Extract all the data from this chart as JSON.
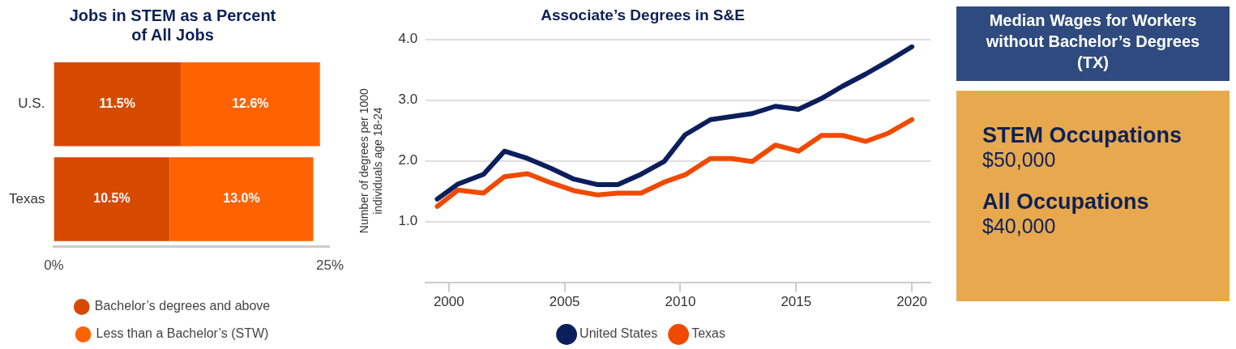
{
  "chart_data": [
    {
      "type": "bar",
      "orientation": "horizontal",
      "stacked": true,
      "title": "Jobs in STEM as a Percent of All Jobs",
      "categories": [
        "U.S.",
        "Texas"
      ],
      "series": [
        {
          "name": "Bachelor’s degrees and above",
          "color": "#d64a00",
          "values": [
            11.5,
            10.5
          ],
          "value_labels": [
            "11.5%",
            "10.5%"
          ]
        },
        {
          "name": "Less than a Bachelor’s (STW)",
          "color": "#ff6200",
          "values": [
            12.6,
            13.0
          ],
          "value_labels": [
            "12.6%",
            "13.0%"
          ]
        }
      ],
      "xlim": [
        0,
        25
      ],
      "xticks": [
        {
          "value": 0,
          "label": "0%"
        },
        {
          "value": 25,
          "label": "25%"
        }
      ],
      "grid": false,
      "legend": "bottom"
    },
    {
      "type": "line",
      "title": "Associate’s Degrees in S&E",
      "ylabel": "Number of degrees per 1000 individuals age 18-24",
      "x": [
        1999.5,
        2000.4,
        2001.5,
        2002.4,
        2003.4,
        2004.4,
        2005.4,
        2006.4,
        2007.3,
        2008.3,
        2009.3,
        2010.2,
        2011.3,
        2012.2,
        2013.1,
        2014.1,
        2015.1,
        2016.1,
        2017.0,
        2018.0,
        2019.0,
        2020.0
      ],
      "series": [
        {
          "name": "United States",
          "color": "#0b1f5c",
          "values": [
            1.37,
            1.62,
            1.78,
            2.16,
            2.04,
            1.88,
            1.7,
            1.61,
            1.61,
            1.78,
            1.99,
            2.43,
            2.68,
            2.73,
            2.78,
            2.9,
            2.85,
            3.03,
            3.23,
            3.43,
            3.65,
            3.88
          ]
        },
        {
          "name": "Texas",
          "color": "#f04a00",
          "values": [
            1.25,
            1.52,
            1.47,
            1.74,
            1.79,
            1.64,
            1.51,
            1.44,
            1.47,
            1.47,
            1.65,
            1.77,
            2.04,
            2.04,
            1.99,
            2.26,
            2.16,
            2.42,
            2.42,
            2.32,
            2.46,
            2.68
          ]
        }
      ],
      "xlim": [
        1999,
        2020.8
      ],
      "xticks": [
        2000,
        2005,
        2010,
        2015,
        2020
      ],
      "ylim": [
        0,
        4
      ],
      "yticks": [
        {
          "value": 1,
          "label": "1.0"
        },
        {
          "value": 2,
          "label": "2.0"
        },
        {
          "value": 3,
          "label": "3.0"
        },
        {
          "value": 4,
          "label": "4.0"
        }
      ],
      "grid": "y",
      "legend": "bottom",
      "marker": "none",
      "line_style": "solid"
    },
    {
      "type": "other",
      "title": "Median Wages for Workers without Bachelor’s Degrees (TX)",
      "annotations": [
        "STEM Occupations",
        "$50,000",
        "All Occupations",
        "$40,000"
      ]
    }
  ]
}
